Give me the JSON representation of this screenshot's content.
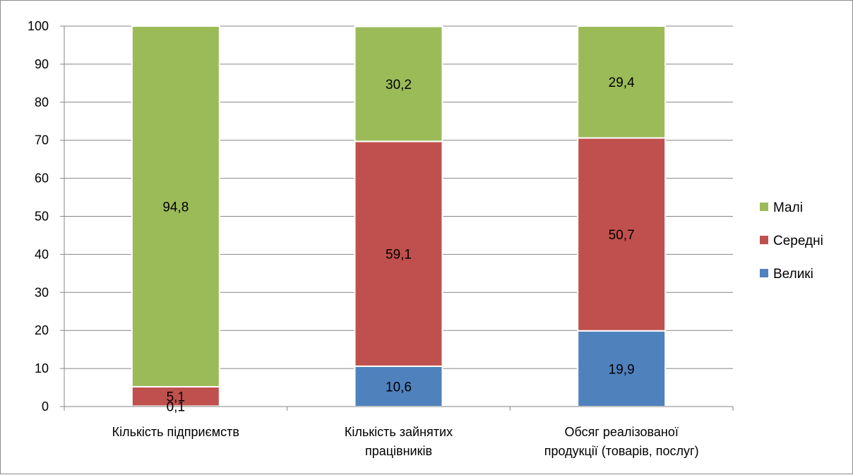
{
  "chart_data": {
    "type": "bar",
    "stacked": true,
    "categories": [
      [
        "Кількість підприємств"
      ],
      [
        "Кількість зайнятих",
        "працівників"
      ],
      [
        "Обсяг реалізованої",
        "продукції (товарів, послуг)"
      ]
    ],
    "series": [
      {
        "name": "Великі",
        "color": "#4f81bd",
        "values": [
          0.1,
          10.6,
          19.9
        ],
        "labels": [
          "0,1",
          "10,6",
          "19,9"
        ]
      },
      {
        "name": "Середні",
        "color": "#c0504d",
        "values": [
          5.1,
          59.1,
          50.7
        ],
        "labels": [
          "5,1",
          "59,1",
          "50,7"
        ]
      },
      {
        "name": "Малі",
        "color": "#9bbb59",
        "values": [
          94.8,
          30.2,
          29.4
        ],
        "labels": [
          "94,8",
          "30,2",
          "29,4"
        ]
      }
    ],
    "ylim": [
      0,
      100
    ],
    "yticks": [
      0,
      10,
      20,
      30,
      40,
      50,
      60,
      70,
      80,
      90,
      100
    ],
    "grid": true,
    "legend": "right",
    "legend_order": [
      "Малі",
      "Середні",
      "Великі"
    ]
  }
}
